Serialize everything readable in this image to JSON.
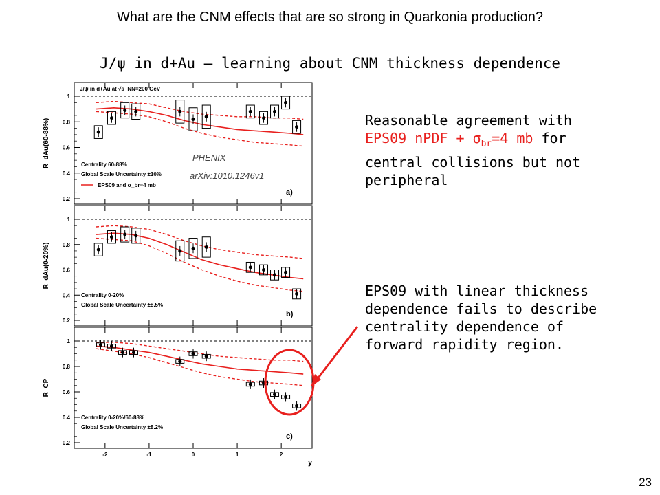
{
  "slide": {
    "question": "What are the CNM effects that are so strong in Quarkonia production?",
    "subtitle": "J/ψ in d+Au – learning about CNM thickness dependence",
    "page_number": "23",
    "text1": {
      "line1": "Reasonable agreement with",
      "model_pre": "EPS09 nPDF + ",
      "sigma": "σ",
      "sigma_sub": "br",
      "model_post": "=4 mb",
      "after_model": "  for",
      "line3": "central collisions but not",
      "line4": "peripheral"
    },
    "text2": {
      "line1": "EPS09 with linear thickness",
      "line2": "dependence fails to describe",
      "line3": "centrality dependence of",
      "line4": "forward rapidity region."
    }
  },
  "colors": {
    "red": "#e8201e",
    "black": "#000000",
    "grid": "#000000"
  },
  "chart_data": [
    {
      "type": "scatter",
      "panel": "a)",
      "ylabel": "R_dAu(60-88%)",
      "header": "J/ψ in d+Au at √s_NN=200 GeV",
      "legend_lines": [
        "Centrality 60-88%",
        "Global Scale Uncertainty ±10%"
      ],
      "legend_model": "EPS09 and σ_br=4 mb",
      "annotation": [
        "PHENIX",
        "arXiv:1010.1246v1"
      ],
      "ylim": [
        0.2,
        1.0
      ],
      "yticks": [
        "0.2",
        "0.4",
        "0.6",
        "0.8",
        "1"
      ],
      "points": {
        "x": [
          -2.15,
          -1.85,
          -1.55,
          -1.3,
          -0.3,
          0.0,
          0.3,
          1.3,
          1.6,
          1.85,
          2.1,
          2.35
        ],
        "y": [
          0.72,
          0.83,
          0.89,
          0.88,
          0.88,
          0.82,
          0.84,
          0.88,
          0.83,
          0.88,
          0.95,
          0.76
        ],
        "box_err": [
          0.05,
          0.05,
          0.06,
          0.06,
          0.09,
          0.09,
          0.09,
          0.05,
          0.05,
          0.05,
          0.05,
          0.05
        ]
      },
      "model": {
        "x": [
          -2.2,
          -1.8,
          -1.4,
          -1.0,
          -0.6,
          -0.2,
          0.2,
          0.6,
          1.0,
          1.4,
          1.8,
          2.2,
          2.5
        ],
        "y": [
          0.9,
          0.91,
          0.9,
          0.88,
          0.85,
          0.81,
          0.78,
          0.76,
          0.74,
          0.73,
          0.72,
          0.71,
          0.7
        ],
        "band_low": [
          0.88,
          0.87,
          0.86,
          0.84,
          0.8,
          0.75,
          0.71,
          0.68,
          0.66,
          0.64,
          0.63,
          0.62,
          0.61
        ],
        "band_high": [
          0.95,
          0.96,
          0.95,
          0.94,
          0.91,
          0.88,
          0.86,
          0.85,
          0.84,
          0.84,
          0.83,
          0.83,
          0.82
        ]
      }
    },
    {
      "type": "scatter",
      "panel": "b)",
      "ylabel": "R_dAu(0-20%)",
      "legend_lines": [
        "Centrality 0-20%",
        "Global Scale Uncertainty ±8.5%"
      ],
      "ylim": [
        0.2,
        1.0
      ],
      "yticks": [
        "0.2",
        "0.4",
        "0.6",
        "0.8",
        "1"
      ],
      "points": {
        "x": [
          -2.15,
          -1.85,
          -1.55,
          -1.3,
          -0.3,
          0.0,
          0.3,
          1.3,
          1.6,
          1.85,
          2.1,
          2.35
        ],
        "y": [
          0.76,
          0.86,
          0.88,
          0.87,
          0.75,
          0.77,
          0.78,
          0.62,
          0.6,
          0.56,
          0.58,
          0.41
        ],
        "box_err": [
          0.05,
          0.05,
          0.06,
          0.06,
          0.08,
          0.08,
          0.08,
          0.04,
          0.04,
          0.04,
          0.04,
          0.04
        ]
      },
      "model": {
        "x": [
          -2.2,
          -1.8,
          -1.4,
          -1.0,
          -0.6,
          -0.2,
          0.2,
          0.6,
          1.0,
          1.4,
          1.8,
          2.2,
          2.5
        ],
        "y": [
          0.88,
          0.89,
          0.88,
          0.85,
          0.8,
          0.74,
          0.68,
          0.64,
          0.61,
          0.58,
          0.56,
          0.54,
          0.53
        ],
        "band_low": [
          0.85,
          0.84,
          0.83,
          0.79,
          0.73,
          0.66,
          0.6,
          0.55,
          0.51,
          0.48,
          0.46,
          0.44,
          0.43
        ],
        "band_high": [
          0.94,
          0.95,
          0.94,
          0.92,
          0.88,
          0.83,
          0.79,
          0.76,
          0.74,
          0.72,
          0.71,
          0.7,
          0.69
        ]
      }
    },
    {
      "type": "scatter",
      "panel": "c)",
      "ylabel": "R_CP",
      "legend_lines": [
        "Centrality 0-20%/60-88%",
        "Global Scale Uncertainty ±8.2%"
      ],
      "xlabel": "y",
      "xlim": [
        -2.7,
        2.7
      ],
      "xticks": [
        "-2",
        "-1",
        "0",
        "1",
        "2"
      ],
      "ylim": [
        0.2,
        1.0
      ],
      "yticks": [
        "0.2",
        "0.4",
        "0.6",
        "0.8",
        "1"
      ],
      "points": {
        "x": [
          -2.1,
          -1.85,
          -1.6,
          -1.35,
          -0.3,
          0.0,
          0.3,
          1.3,
          1.6,
          1.85,
          2.1,
          2.35
        ],
        "y": [
          0.97,
          0.96,
          0.91,
          0.91,
          0.84,
          0.9,
          0.88,
          0.66,
          0.67,
          0.58,
          0.56,
          0.49
        ],
        "box_err": [
          0.015,
          0.015,
          0.015,
          0.015,
          0.015,
          0.015,
          0.015,
          0.015,
          0.015,
          0.015,
          0.015,
          0.015
        ]
      },
      "model": {
        "x": [
          -2.2,
          -1.8,
          -1.4,
          -1.0,
          -0.6,
          -0.2,
          0.2,
          0.6,
          1.0,
          1.4,
          1.8,
          2.2,
          2.5
        ],
        "y": [
          0.96,
          0.95,
          0.93,
          0.91,
          0.88,
          0.85,
          0.82,
          0.8,
          0.78,
          0.77,
          0.76,
          0.75,
          0.74
        ],
        "band_low": [
          0.94,
          0.92,
          0.9,
          0.87,
          0.83,
          0.79,
          0.75,
          0.72,
          0.7,
          0.68,
          0.67,
          0.66,
          0.65
        ],
        "band_high": [
          0.99,
          0.99,
          0.98,
          0.96,
          0.94,
          0.92,
          0.9,
          0.88,
          0.87,
          0.86,
          0.85,
          0.85,
          0.84
        ]
      }
    }
  ]
}
